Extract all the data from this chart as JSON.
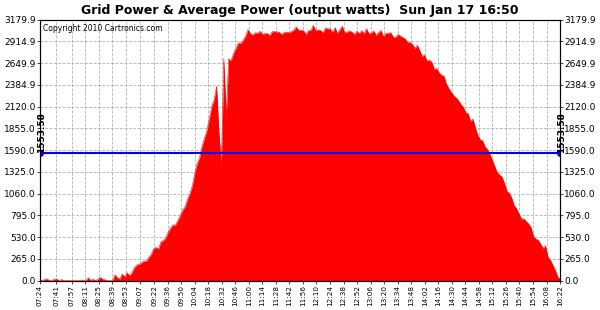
{
  "title": "Grid Power & Average Power (output watts)  Sun Jan 17 16:50",
  "copyright": "Copyright 2010 Cartronics.com",
  "avg_value": 1553.58,
  "avg_label": "1553.58",
  "ymax": 3179.9,
  "yticks": [
    0.0,
    265.0,
    530.0,
    795.0,
    1060.0,
    1325.0,
    1590.0,
    1855.0,
    2120.0,
    2384.9,
    2649.9,
    2914.9,
    3179.9
  ],
  "bar_color": "#FF0000",
  "avg_line_color": "#0000FF",
  "grid_color": "#AAAAAA",
  "background_color": "#FFFFFF",
  "x_labels": [
    "07:24",
    "07:41",
    "07:57",
    "08:11",
    "08:25",
    "08:39",
    "08:53",
    "09:07",
    "09:22",
    "09:36",
    "09:50",
    "10:04",
    "10:18",
    "10:32",
    "10:46",
    "11:00",
    "11:14",
    "11:28",
    "11:42",
    "11:56",
    "12:10",
    "12:24",
    "12:38",
    "12:52",
    "13:06",
    "13:20",
    "13:34",
    "13:48",
    "14:02",
    "14:16",
    "14:30",
    "14:44",
    "14:58",
    "15:12",
    "15:26",
    "15:40",
    "15:54",
    "16:08",
    "16:22"
  ]
}
